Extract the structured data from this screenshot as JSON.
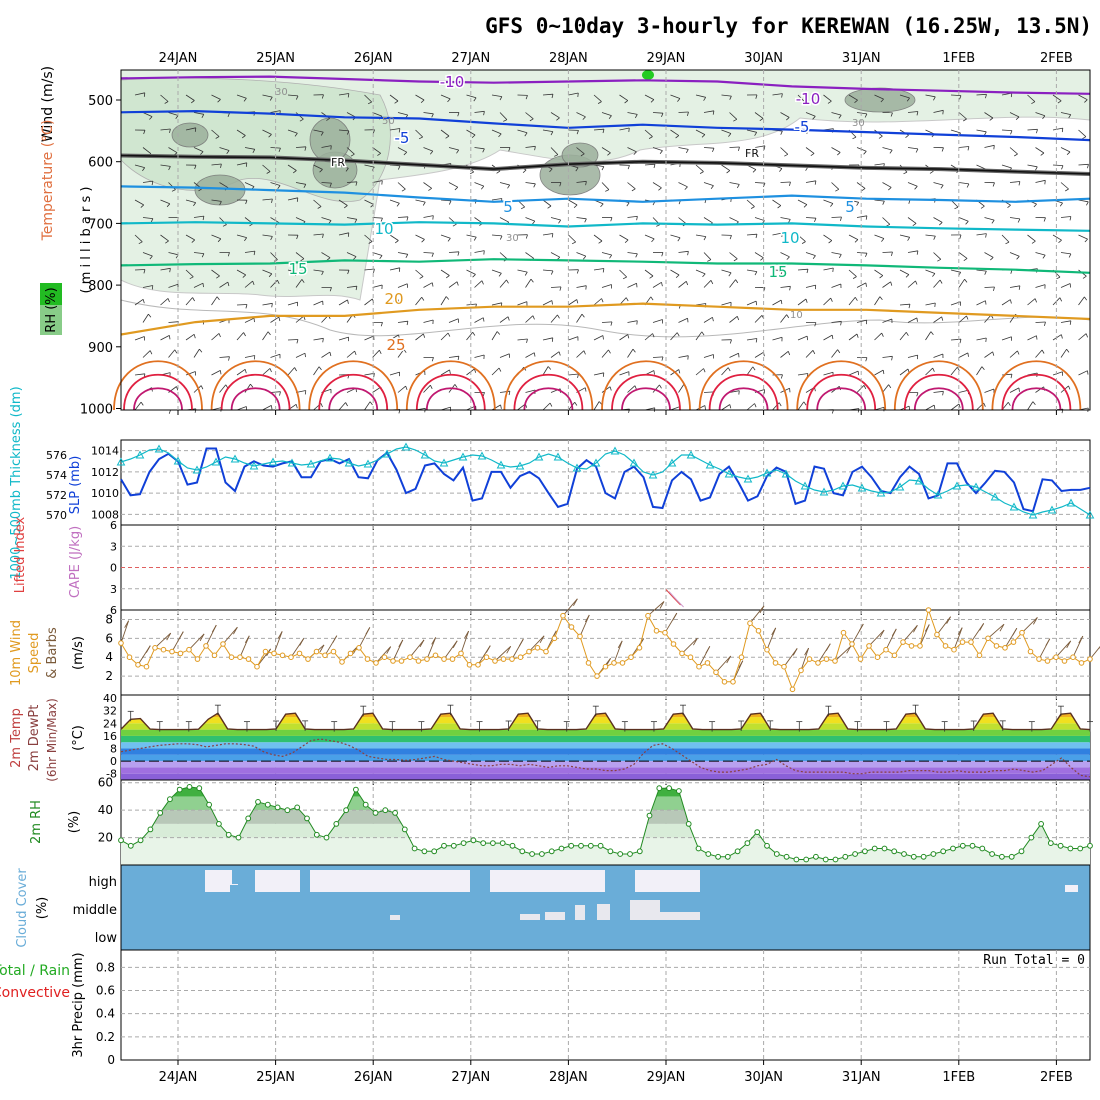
{
  "chart_data": {
    "type": "meteogram",
    "title": "GFS 0~10day 3-hourly for KEREWAN (16.25W, 13.5N)",
    "dates": [
      "24JAN",
      "25JAN",
      "26JAN",
      "27JAN",
      "28JAN",
      "29JAN",
      "30JAN",
      "31JAN",
      "1FEB",
      "2FEB"
    ],
    "colors": {
      "purple": "#8a20c0",
      "blue": "#1040d8",
      "black": "#111111",
      "lightblue": "#1e90e0",
      "teal": "#10b8c8",
      "green": "#10b878",
      "orange": "#e09a20",
      "darkorange": "#e07020",
      "red": "#e02040",
      "magenta": "#c01870",
      "rh": "#228b22",
      "cloud": "#6aadd8"
    },
    "panels": [
      {
        "id": "upper_air",
        "ylabel_parts": [
          "RH (%)",
          "Temperature (°C)",
          "Wind (m/s)"
        ],
        "ylabel_units": "( m i l l i b a r s )",
        "yticks": [
          500,
          600,
          700,
          800,
          900,
          1000
        ],
        "ylim": [
          1000,
          450
        ],
        "isotherm_labels": [
          "-10",
          "-10",
          "-5",
          "-5",
          "FR",
          "FR",
          "5",
          "5",
          "10",
          "10",
          "15",
          "15",
          "20",
          "25"
        ],
        "rh_labels": [
          "30",
          "50",
          "30",
          "30",
          "10"
        ],
        "isotherms": [
          {
            "label": "-10",
            "color": "purple",
            "levels": [
              465,
              463,
              462,
              466,
              470,
              472,
              470,
              468,
              470,
              478,
              482,
              485,
              488,
              490
            ]
          },
          {
            "label": "-5",
            "color": "blue",
            "levels": [
              520,
              518,
              522,
              528,
              530,
              538,
              545,
              540,
              545,
              548,
              552,
              556,
              560,
              565
            ]
          },
          {
            "label": "0",
            "color": "black",
            "levels": [
              590,
              592,
              593,
              598,
              605,
              612,
              604,
              600,
              602,
              606,
              610,
              612,
              616,
              620
            ]
          },
          {
            "label": "5",
            "color": "lightblue",
            "levels": [
              640,
              642,
              646,
              650,
              658,
              665,
              660,
              665,
              660,
              655,
              660,
              662,
              665,
              660
            ]
          },
          {
            "label": "10",
            "color": "teal",
            "levels": [
              700,
              698,
              700,
              702,
              698,
              700,
              705,
              700,
              702,
              700,
              705,
              708,
              710,
              712
            ]
          },
          {
            "label": "15",
            "color": "green",
            "levels": [
              768,
              766,
              765,
              760,
              762,
              758,
              760,
              762,
              765,
              765,
              768,
              772,
              775,
              780
            ]
          },
          {
            "label": "20",
            "color": "orange",
            "levels": [
              880,
              860,
              850,
              850,
              840,
              835,
              835,
              830,
              835,
              840,
              840,
              845,
              850,
              855
            ]
          }
        ]
      },
      {
        "id": "slp",
        "ylabel_left": "1000~500mb Thickness (dm)",
        "ylabel_right": "SLP (mb)",
        "slp_yticks": [
          1008,
          1010,
          1012,
          1014
        ],
        "thk_yticks": [
          570,
          572,
          574,
          576
        ],
        "slp_range": [
          1007,
          1015
        ],
        "thk_range": [
          569,
          577.5
        ],
        "slp_values": [
          1011.3,
          1009.8,
          1009.9,
          1012.0,
          1013.2,
          1013.7,
          1013.0,
          1010.8,
          1011.0,
          1014.2,
          1014.2,
          1011.0,
          1010.2,
          1012.5,
          1013.0,
          1012.6,
          1012.5,
          1012.8,
          1013.0,
          1011.5,
          1011.5,
          1013.0,
          1013.2,
          1012.8,
          1013.2,
          1011.5,
          1011.4,
          1013.1,
          1013.8,
          1012.2,
          1010.0,
          1010.4,
          1012.6,
          1012.8,
          1011.8,
          1011.2,
          1012.4,
          1009.3,
          1009.5,
          1012.0,
          1012.0,
          1010.5,
          1011.6,
          1012.0,
          1011.4,
          1010.0,
          1008.7,
          1009.0,
          1012.3,
          1013.1,
          1012.5,
          1010.0,
          1009.5,
          1012.0,
          1012.5,
          1011.5,
          1008.7,
          1008.6,
          1011.2,
          1012.0,
          1011.3,
          1009.3,
          1009.6,
          1011.8,
          1012.5,
          1011.0,
          1009.3,
          1009.7,
          1011.6,
          1012.4,
          1012.0,
          1009.0,
          1009.3,
          1012.5,
          1012.3,
          1010.0,
          1009.8,
          1012.0,
          1012.5,
          1011.5,
          1010.2,
          1010.0,
          1011.5,
          1012.5,
          1011.8,
          1009.5,
          1009.8,
          1012.8,
          1012.8,
          1011.0,
          1010.0,
          1011.0,
          1012.1,
          1012.0,
          1011.0,
          1008.5,
          1008.3,
          1011.3,
          1011.2,
          1010.2,
          1010.3,
          1010.3,
          1010.5
        ],
        "thk_values": [
          575.3,
          575.6,
          576.0,
          576.5,
          576.6,
          576.2,
          575.4,
          574.7,
          574.5,
          574.8,
          575.3,
          575.8,
          575.6,
          575.2,
          574.9,
          575.1,
          575.3,
          575.4,
          575.2,
          575.0,
          575.1,
          575.4,
          575.7,
          575.6,
          575.2,
          574.9,
          575.1,
          575.5,
          576.1,
          576.6,
          576.8,
          576.5,
          576.0,
          575.4,
          575.2,
          575.5,
          575.8,
          576.0,
          575.9,
          575.5,
          575.0,
          574.8,
          574.9,
          575.2,
          575.8,
          576.1,
          575.8,
          575.2,
          574.7,
          574.6,
          575.2,
          576.1,
          576.4,
          576.0,
          575.2,
          574.3,
          574.0,
          574.3,
          575.2,
          576.0,
          576.0,
          575.5,
          575.0,
          574.6,
          574.1,
          573.8,
          573.6,
          573.8,
          574.2,
          574.5,
          574.1,
          573.4,
          572.9,
          572.5,
          572.3,
          572.5,
          572.9,
          573.0,
          572.7,
          572.4,
          572.2,
          572.3,
          572.8,
          573.5,
          573.4,
          572.6,
          572.0,
          572.4,
          572.9,
          573.0,
          572.8,
          572.3,
          571.8,
          571.2,
          570.8,
          570.3,
          570.0,
          570.3,
          570.5,
          570.8,
          571.2,
          570.6,
          570.0
        ]
      },
      {
        "id": "cape",
        "ylabel_left": "Lifted Index",
        "ylabel_right": "CAPE (J/kg)",
        "yticks": [
          "6",
          "3",
          "0",
          "3",
          "6"
        ],
        "li_range": [
          -6,
          6
        ],
        "cape_spike": [
          {
            "day": 5.0,
            "li": 3.1
          },
          {
            "day": 5.08,
            "li": 4.3
          },
          {
            "day": 5.15,
            "li": 5.3
          }
        ]
      },
      {
        "id": "wind",
        "ylabel_a": "10m Wind",
        "ylabel_b": "Speed",
        "ylabel_c": "& Barbs",
        "ylabel_units": "(m/s)",
        "yticks": [
          2,
          4,
          6,
          8
        ],
        "ylim": [
          0,
          9
        ],
        "speed": [
          5.5,
          4.0,
          3.2,
          3.0,
          5.0,
          4.8,
          4.6,
          4.4,
          4.8,
          3.8,
          5.2,
          4.2,
          5.4,
          4.0,
          4.0,
          3.8,
          3.0,
          4.6,
          4.4,
          4.2,
          4.0,
          4.4,
          3.8,
          4.6,
          4.2,
          4.6,
          3.5,
          4.4,
          5.0,
          3.8,
          3.4,
          4.0,
          3.6,
          3.6,
          4.0,
          3.6,
          3.8,
          4.2,
          3.8,
          3.8,
          4.4,
          3.2,
          3.2,
          4.0,
          3.6,
          3.8,
          3.8,
          4.0,
          4.6,
          5.0,
          4.6,
          6.0,
          8.4,
          7.2,
          6.2,
          3.4,
          2.0,
          3.0,
          3.4,
          3.4,
          4.0,
          5.0,
          8.4,
          6.8,
          6.6,
          5.4,
          4.4,
          4.0,
          3.0,
          3.4,
          2.4,
          1.4,
          1.4,
          4.0,
          7.6,
          6.8,
          4.8,
          3.4,
          3.0,
          0.6,
          2.6,
          3.8,
          3.4,
          3.8,
          3.6,
          6.6,
          5.4,
          3.8,
          5.2,
          4.0,
          4.8,
          4.2,
          5.6,
          5.2,
          5.2,
          9.0,
          6.4,
          5.2,
          4.8,
          5.6,
          5.6,
          4.2,
          6.0,
          5.2,
          5.0,
          5.6,
          6.6,
          4.6,
          3.8,
          3.6,
          4.0,
          3.6,
          4.0,
          3.4,
          3.8
        ]
      },
      {
        "id": "temp",
        "ylabel_a": "2m Temp",
        "ylabel_b": "2m DewPt",
        "ylabel_c": "(6hr Min/Max)",
        "ylabel_units": "(°C)",
        "yticks": [
          "40",
          "32",
          "24",
          "16",
          "8",
          "0",
          "-8"
        ],
        "ylim": [
          -12,
          42
        ],
        "temp_max_days": 35,
        "dewpoint": [
          6,
          7,
          8,
          9,
          10,
          10.5,
          11,
          11,
          10.5,
          9,
          10,
          11,
          11,
          10.5,
          9.5,
          6,
          4,
          3,
          5,
          9,
          13,
          14,
          13,
          12,
          10,
          7,
          3,
          2,
          1,
          1,
          0.5,
          1,
          2,
          3,
          1,
          0,
          -1,
          -2,
          -3,
          -3,
          -2,
          -2,
          -3,
          -2,
          -3,
          -4,
          -3,
          -3,
          -4,
          -5,
          -5,
          -6,
          -6,
          -5,
          -2,
          5,
          10,
          11,
          8,
          4,
          0,
          -4,
          -6,
          -7,
          -7,
          -6,
          -5,
          -3,
          -2,
          1,
          -3,
          -6,
          -7,
          -7,
          -7,
          -7,
          -7,
          -8,
          -8,
          -7,
          -7,
          -7,
          -7,
          -6,
          -6,
          -6,
          -7,
          -7,
          -6,
          -7,
          -7,
          -7,
          -6,
          -6,
          -5,
          -6,
          -7,
          -6,
          -2,
          2,
          -4,
          -9,
          -10
        ]
      },
      {
        "id": "rh",
        "ylabel": "2m RH",
        "ylabel_units": "(%)",
        "yticks": [
          20,
          40,
          60
        ],
        "ylim": [
          0,
          62
        ],
        "values": [
          18,
          14,
          18,
          26,
          38,
          48,
          55,
          57,
          56,
          44,
          30,
          22,
          20,
          34,
          46,
          44,
          42,
          40,
          42,
          34,
          22,
          20,
          30,
          40,
          55,
          44,
          38,
          40,
          38,
          26,
          12,
          10,
          10,
          14,
          14,
          16,
          18,
          16,
          16,
          16,
          14,
          10,
          8,
          8,
          10,
          12,
          14,
          14,
          14,
          14,
          10,
          8,
          8,
          10,
          36,
          56,
          56,
          54,
          30,
          12,
          8,
          6,
          6,
          10,
          16,
          24,
          14,
          8,
          6,
          4,
          4,
          6,
          4,
          4,
          6,
          8,
          10,
          12,
          12,
          10,
          8,
          6,
          6,
          8,
          10,
          12,
          14,
          14,
          12,
          8,
          6,
          6,
          10,
          20,
          30,
          16,
          14,
          12,
          12,
          14
        ]
      },
      {
        "id": "cloud",
        "ylabel": "Cloud Cover",
        "ylabel_units": "(%)",
        "ytick_labels": [
          "high",
          "middle",
          "low"
        ]
      },
      {
        "id": "precip",
        "ylabel_a": "Total / Rain",
        "ylabel_b": "Convective",
        "ylabel_c": "3hr Precip (mm)",
        "yticks": [
          "0",
          "0.2",
          "0.4",
          "0.6",
          "0.8"
        ],
        "ylim": [
          0,
          0.95
        ],
        "run_total_label": "Run Total = 0",
        "values": []
      }
    ]
  }
}
